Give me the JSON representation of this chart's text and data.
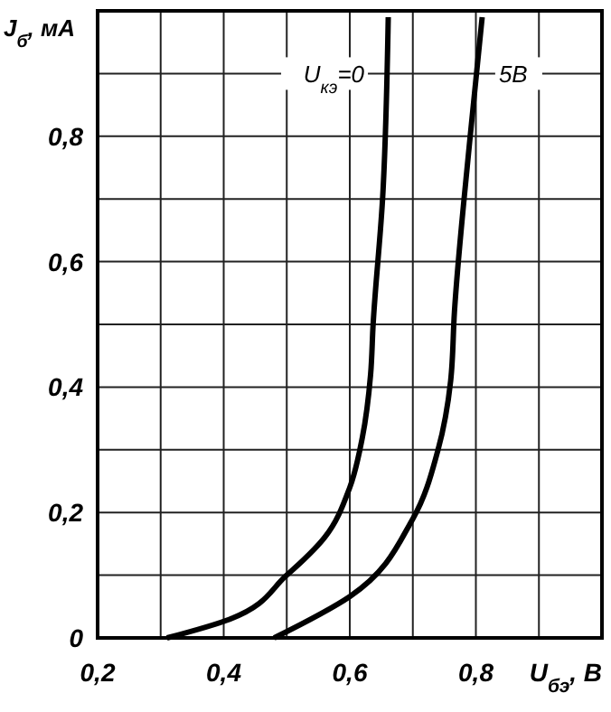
{
  "chart_data": {
    "type": "line",
    "xlabel": "U$_{бэ}$, В",
    "ylabel": "J$_{б}$, мА",
    "xlim": [
      0.2,
      1.0
    ],
    "xticks": [
      {
        "value": 0.2,
        "label": "0,2"
      },
      {
        "value": 0.4,
        "label": "0,4"
      },
      {
        "value": 0.6,
        "label": "0,6"
      },
      {
        "value": 0.8,
        "label": "0,8"
      }
    ],
    "ylim": [
      0,
      1.0
    ],
    "yticks": [
      {
        "value": 0,
        "label": "0"
      },
      {
        "value": 0.2,
        "label": "0,2"
      },
      {
        "value": 0.4,
        "label": "0,4"
      },
      {
        "value": 0.6,
        "label": "0,6"
      },
      {
        "value": 0.8,
        "label": "0,8"
      }
    ],
    "grid": true,
    "marker": "none",
    "line_style": "solid",
    "series": [
      {
        "name": "U$_{кэ}$=0",
        "color": "#000000",
        "x": [
          0.31,
          0.41,
          0.5,
          0.56,
          0.6,
          0.62,
          0.633,
          0.637,
          0.652,
          0.661
        ],
        "values": [
          0,
          0.03,
          0.1,
          0.16,
          0.24,
          0.32,
          0.42,
          0.5,
          0.7,
          0.99
        ]
      },
      {
        "name": "5В",
        "color": "#000000",
        "x": [
          0.48,
          0.6,
          0.7,
          0.74,
          0.76,
          0.766,
          0.79,
          0.81
        ],
        "values": [
          0,
          0.066,
          0.19,
          0.3,
          0.41,
          0.52,
          0.79,
          0.99
        ]
      }
    ]
  }
}
